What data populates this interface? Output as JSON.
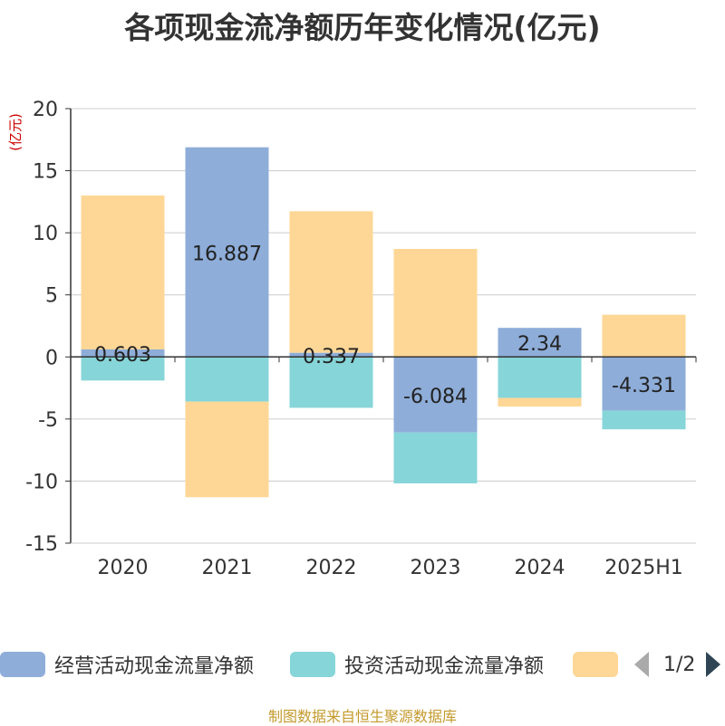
{
  "title": "各项现金流净额历年变化情况(亿元)",
  "footer": "制图数据来自恒生聚源数据库",
  "colors": {
    "operating": "#8eadd9",
    "investing": "#86d5d8",
    "financing": "#fed796",
    "axis": "#333333",
    "grid": "#cccccc",
    "unit_label": "#cc0000"
  },
  "legend": {
    "items": [
      "经营活动现金流量净额",
      "投资活动现金流量净额",
      ""
    ],
    "page": "1/2",
    "prev_icon": "triangle-left-icon",
    "next_icon": "triangle-right-icon"
  },
  "chart_data": {
    "type": "bar",
    "stacked": true,
    "title": "各项现金流净额历年变化情况(亿元)",
    "ylabel": "(亿元)",
    "ylim": [
      -15,
      20
    ],
    "yticks": [
      -15,
      -10,
      -5,
      0,
      5,
      10,
      15,
      20
    ],
    "grid": true,
    "legend_position": "bottom",
    "categories": [
      "2020",
      "2021",
      "2022",
      "2023",
      "2024",
      "2025H1"
    ],
    "series": [
      {
        "name": "经营活动现金流量净额",
        "color": "#8eadd9",
        "values": [
          0.603,
          16.887,
          0.337,
          -6.084,
          2.34,
          -4.331
        ],
        "labels": [
          "0.603",
          "16.887",
          "0.337",
          "-6.084",
          "2.34",
          "-4.331"
        ]
      },
      {
        "name": "投资活动现金流量净额",
        "color": "#86d5d8",
        "values": [
          -1.9,
          -3.6,
          -4.1,
          -4.1,
          -3.3,
          -1.5
        ]
      },
      {
        "name": "",
        "color": "#fed796",
        "values": [
          12.4,
          -7.7,
          11.4,
          8.7,
          -0.7,
          3.4
        ]
      }
    ]
  }
}
